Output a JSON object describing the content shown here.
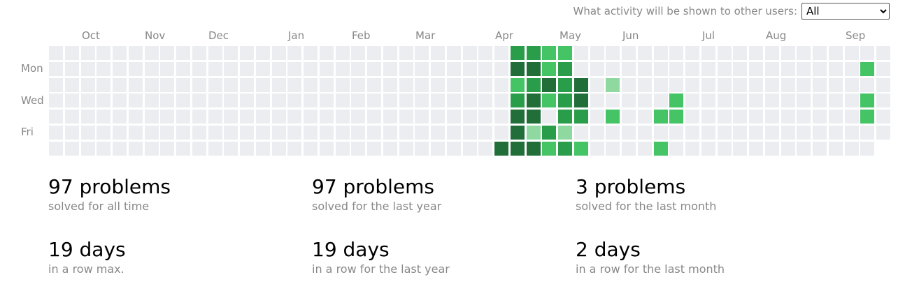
{
  "visibility": {
    "label": "What activity will be shown to other users:",
    "selected": "All"
  },
  "heatmap": {
    "months": [
      "Oct",
      "Nov",
      "Dec",
      "Jan",
      "Feb",
      "Mar",
      "Apr",
      "May",
      "Jun",
      "Jul",
      "Aug",
      "Sep"
    ],
    "days": [
      "Mon",
      "Wed",
      "Fri"
    ],
    "colors": [
      "#ebedf0",
      "#8fd89f",
      "#44c464",
      "#2a9d4a",
      "#216e39"
    ],
    "active_cells": [
      {
        "week": 28,
        "day": 6,
        "level": 4
      },
      {
        "week": 29,
        "day": 0,
        "level": 3
      },
      {
        "week": 29,
        "day": 1,
        "level": 4
      },
      {
        "week": 29,
        "day": 2,
        "level": 2
      },
      {
        "week": 29,
        "day": 3,
        "level": 3
      },
      {
        "week": 29,
        "day": 4,
        "level": 4
      },
      {
        "week": 29,
        "day": 5,
        "level": 4
      },
      {
        "week": 29,
        "day": 6,
        "level": 4
      },
      {
        "week": 30,
        "day": 0,
        "level": 3
      },
      {
        "week": 30,
        "day": 1,
        "level": 4
      },
      {
        "week": 30,
        "day": 2,
        "level": 3
      },
      {
        "week": 30,
        "day": 3,
        "level": 4
      },
      {
        "week": 30,
        "day": 4,
        "level": 4
      },
      {
        "week": 30,
        "day": 5,
        "level": 1
      },
      {
        "week": 30,
        "day": 6,
        "level": 4
      },
      {
        "week": 31,
        "day": 0,
        "level": 2
      },
      {
        "week": 31,
        "day": 1,
        "level": 2
      },
      {
        "week": 31,
        "day": 2,
        "level": 4
      },
      {
        "week": 31,
        "day": 3,
        "level": 2
      },
      {
        "week": 31,
        "day": 5,
        "level": 3
      },
      {
        "week": 31,
        "day": 6,
        "level": 2
      },
      {
        "week": 32,
        "day": 0,
        "level": 2
      },
      {
        "week": 32,
        "day": 1,
        "level": 3
      },
      {
        "week": 32,
        "day": 2,
        "level": 3
      },
      {
        "week": 32,
        "day": 3,
        "level": 3
      },
      {
        "week": 32,
        "day": 4,
        "level": 3
      },
      {
        "week": 32,
        "day": 5,
        "level": 1
      },
      {
        "week": 32,
        "day": 6,
        "level": 3
      },
      {
        "week": 33,
        "day": 2,
        "level": 4
      },
      {
        "week": 33,
        "day": 3,
        "level": 4
      },
      {
        "week": 33,
        "day": 4,
        "level": 3
      },
      {
        "week": 33,
        "day": 6,
        "level": 2
      },
      {
        "week": 35,
        "day": 2,
        "level": 1
      },
      {
        "week": 35,
        "day": 4,
        "level": 2
      },
      {
        "week": 38,
        "day": 4,
        "level": 2
      },
      {
        "week": 38,
        "day": 6,
        "level": 2
      },
      {
        "week": 39,
        "day": 3,
        "level": 2
      },
      {
        "week": 39,
        "day": 4,
        "level": 2
      },
      {
        "week": 51,
        "day": 1,
        "level": 2
      },
      {
        "week": 51,
        "day": 3,
        "level": 2
      },
      {
        "week": 51,
        "day": 4,
        "level": 2
      }
    ]
  },
  "stats": {
    "all_time_problems": {
      "value": "97 problems",
      "caption": "solved for all time"
    },
    "last_year_problems": {
      "value": "97 problems",
      "caption": "solved for the last year"
    },
    "last_month_problems": {
      "value": "3 problems",
      "caption": "solved for the last month"
    },
    "max_streak": {
      "value": "19 days",
      "caption": "in a row max."
    },
    "last_year_streak": {
      "value": "19 days",
      "caption": "in a row for the last year"
    },
    "last_month_streak": {
      "value": "2 days",
      "caption": "in a row for the last month"
    }
  }
}
